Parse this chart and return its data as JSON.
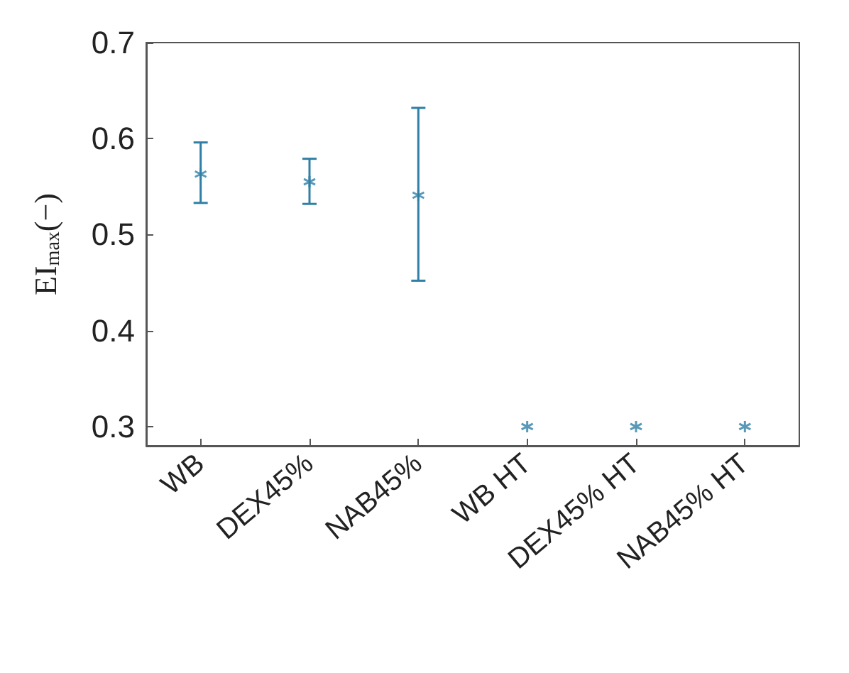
{
  "chart_data": {
    "type": "scatter",
    "ylabel": "EI$_{max}$(−)",
    "categories": [
      "WB",
      "DEX45%",
      "NAB45%",
      "WB HT",
      "DEX45% HT",
      "NAB45% HT"
    ],
    "values": [
      0.563,
      0.555,
      0.541,
      0.3,
      0.3,
      0.3
    ],
    "errors": [
      [
        0.533,
        0.596
      ],
      [
        0.532,
        0.579
      ],
      [
        0.452,
        0.632
      ],
      null,
      null,
      null
    ],
    "color": "#2f7fa6",
    "marker": "cross",
    "ylim": [
      0.28,
      0.7
    ],
    "yticks": [
      0.3,
      0.4,
      0.5,
      0.6,
      0.7
    ],
    "grid": false
  }
}
